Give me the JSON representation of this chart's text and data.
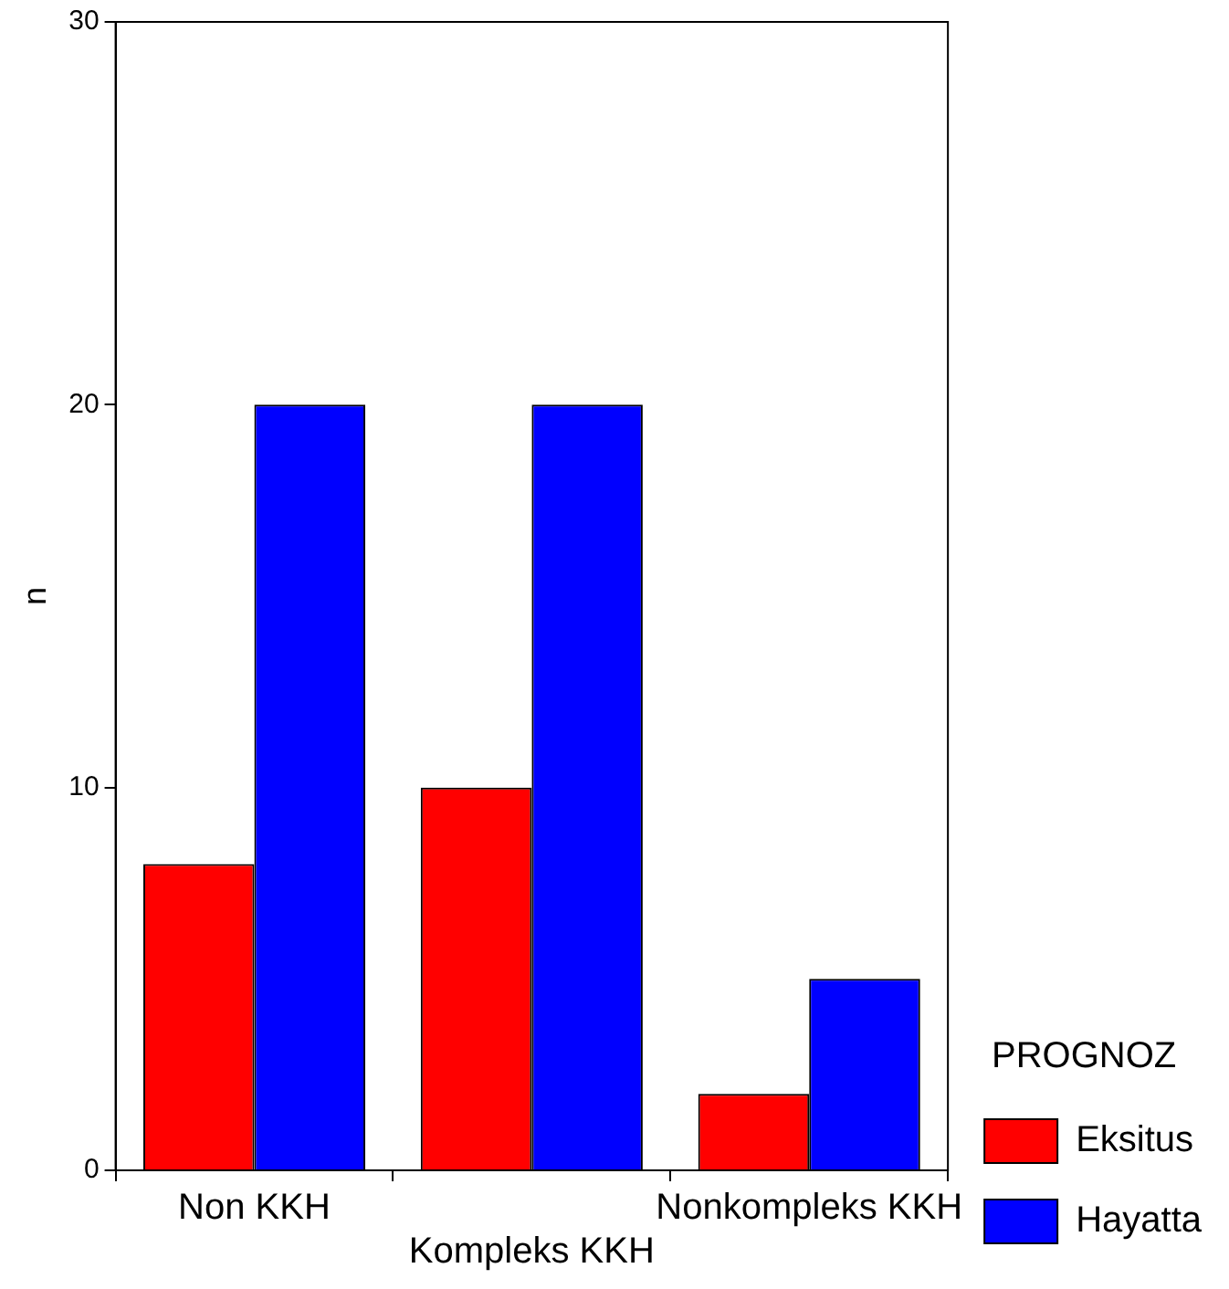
{
  "chart_data": {
    "type": "bar",
    "ylabel": "n",
    "legend_title": "PROGNOZ",
    "legend": "right",
    "categories": [
      "Non KKH",
      "Kompleks KKH",
      "Nonkompleks KKH"
    ],
    "series": [
      {
        "name": "Eksitus",
        "color": "#ff0000",
        "values": [
          8,
          10,
          2
        ]
      },
      {
        "name": "Hayatta",
        "color": "#0000ff",
        "values": [
          20,
          20,
          5
        ]
      }
    ],
    "ylim": [
      0,
      30
    ],
    "yticks": [
      0,
      10,
      20,
      30
    ],
    "grid": false
  }
}
